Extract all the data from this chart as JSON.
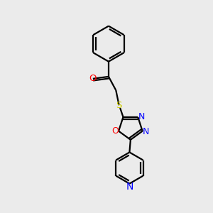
{
  "bg_color": "#ebebeb",
  "bond_color": "#000000",
  "oxygen_color": "#ff0000",
  "nitrogen_color": "#0000ff",
  "sulfur_color": "#cccc00",
  "line_width": 1.6,
  "font_size": 9.5,
  "xlim": [
    0,
    10
  ],
  "ylim": [
    0,
    10
  ]
}
